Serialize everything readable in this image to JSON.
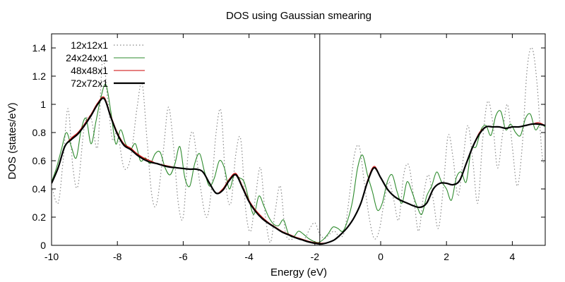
{
  "chart_data": {
    "type": "line",
    "title": "DOS using Gaussian smearing",
    "xlabel": "Energy (eV)",
    "ylabel": "DOS (states/eV)",
    "xlim": [
      -10,
      5
    ],
    "ylim": [
      0,
      1.5
    ],
    "xticks": [
      "-10",
      "-8",
      "-6",
      "-4",
      "-2",
      "0",
      "2",
      "4"
    ],
    "yticks": [
      "0",
      "0.2",
      "0.4",
      "0.6",
      "0.8",
      "1",
      "1.2",
      "1.4"
    ],
    "legend_position": "top-left",
    "vertical_line_x": -1.85,
    "series": [
      {
        "name": "12x12x1",
        "color": "#888888",
        "style": "dotted",
        "x": [
          -10.0,
          -9.8,
          -9.65,
          -9.5,
          -9.35,
          -9.2,
          -9.0,
          -8.8,
          -8.6,
          -8.45,
          -8.3,
          -8.15,
          -8.0,
          -7.8,
          -7.6,
          -7.4,
          -7.25,
          -7.1,
          -6.95,
          -6.8,
          -6.6,
          -6.45,
          -6.3,
          -6.15,
          -6.0,
          -5.85,
          -5.7,
          -5.5,
          -5.3,
          -5.15,
          -5.0,
          -4.85,
          -4.7,
          -4.55,
          -4.4,
          -4.25,
          -4.1,
          -3.95,
          -3.8,
          -3.65,
          -3.5,
          -3.35,
          -3.2,
          -3.05,
          -2.9,
          -2.75,
          -2.6,
          -2.45,
          -2.3,
          -2.15,
          -2.0,
          -1.85,
          -1.7,
          -1.55,
          -1.4,
          -1.25,
          -1.1,
          -0.95,
          -0.8,
          -0.65,
          -0.5,
          -0.35,
          -0.2,
          -0.05,
          0.1,
          0.25,
          0.4,
          0.55,
          0.7,
          0.85,
          1.0,
          1.15,
          1.3,
          1.45,
          1.6,
          1.75,
          1.9,
          2.05,
          2.2,
          2.35,
          2.5,
          2.65,
          2.8,
          2.95,
          3.1,
          3.25,
          3.4,
          3.55,
          3.7,
          3.85,
          4.0,
          4.15,
          4.3,
          4.45,
          4.6,
          4.75,
          4.9,
          5.0
        ],
        "y": [
          0.42,
          0.3,
          0.6,
          0.97,
          0.55,
          0.42,
          0.85,
          0.9,
          0.7,
          1.32,
          1.05,
          0.75,
          0.8,
          0.55,
          0.62,
          0.98,
          1.15,
          0.75,
          0.35,
          0.3,
          0.68,
          0.98,
          0.72,
          0.3,
          0.2,
          0.65,
          0.8,
          0.45,
          0.2,
          0.38,
          0.8,
          0.95,
          0.42,
          0.3,
          0.65,
          0.75,
          0.25,
          0.1,
          0.35,
          0.55,
          0.2,
          0.02,
          0.25,
          0.42,
          0.1,
          0.04,
          0.06,
          0.04,
          0.05,
          0.12,
          0.16,
          0.08,
          0.05,
          0.08,
          0.1,
          0.06,
          0.1,
          0.35,
          0.64,
          0.7,
          0.45,
          0.2,
          0.05,
          0.1,
          0.3,
          0.45,
          0.32,
          0.18,
          0.5,
          0.57,
          0.35,
          0.1,
          0.35,
          0.5,
          0.32,
          0.12,
          0.4,
          0.78,
          0.62,
          0.35,
          0.6,
          0.85,
          0.6,
          0.3,
          0.75,
          1.02,
          0.88,
          0.55,
          0.78,
          1.0,
          0.7,
          0.42,
          0.7,
          1.25,
          1.4,
          1.15,
          0.65,
          0.58
        ]
      },
      {
        "name": "24x24xx1",
        "color": "#2e8b2e",
        "style": "solid",
        "x": [
          -10.0,
          -9.85,
          -9.7,
          -9.55,
          -9.4,
          -9.25,
          -9.1,
          -8.95,
          -8.8,
          -8.65,
          -8.5,
          -8.35,
          -8.2,
          -8.05,
          -7.9,
          -7.75,
          -7.6,
          -7.45,
          -7.3,
          -7.15,
          -7.0,
          -6.85,
          -6.7,
          -6.55,
          -6.4,
          -6.25,
          -6.1,
          -5.95,
          -5.8,
          -5.65,
          -5.5,
          -5.35,
          -5.2,
          -5.05,
          -4.9,
          -4.75,
          -4.6,
          -4.45,
          -4.3,
          -4.15,
          -4.0,
          -3.85,
          -3.7,
          -3.55,
          -3.4,
          -3.25,
          -3.1,
          -2.95,
          -2.8,
          -2.65,
          -2.5,
          -2.35,
          -2.2,
          -2.05,
          -1.9,
          -1.75,
          -1.6,
          -1.45,
          -1.3,
          -1.15,
          -1.0,
          -0.85,
          -0.7,
          -0.55,
          -0.4,
          -0.25,
          -0.1,
          0.05,
          0.2,
          0.35,
          0.5,
          0.65,
          0.8,
          0.95,
          1.1,
          1.25,
          1.4,
          1.55,
          1.7,
          1.85,
          2.0,
          2.15,
          2.3,
          2.45,
          2.6,
          2.75,
          2.9,
          3.05,
          3.2,
          3.35,
          3.5,
          3.65,
          3.8,
          3.95,
          4.1,
          4.25,
          4.4,
          4.55,
          4.7,
          4.85,
          5.0
        ],
        "y": [
          0.45,
          0.55,
          0.68,
          0.8,
          0.7,
          0.62,
          0.82,
          0.9,
          0.72,
          0.88,
          1.05,
          1.14,
          0.95,
          0.72,
          0.82,
          0.72,
          0.68,
          0.72,
          0.6,
          0.62,
          0.58,
          0.65,
          0.66,
          0.55,
          0.5,
          0.58,
          0.7,
          0.48,
          0.42,
          0.58,
          0.65,
          0.52,
          0.42,
          0.48,
          0.6,
          0.55,
          0.4,
          0.5,
          0.48,
          0.45,
          0.32,
          0.22,
          0.35,
          0.28,
          0.2,
          0.15,
          0.14,
          0.18,
          0.08,
          0.06,
          0.1,
          0.08,
          0.05,
          0.03,
          0.02,
          0.04,
          0.08,
          0.13,
          0.12,
          0.1,
          0.18,
          0.32,
          0.55,
          0.64,
          0.5,
          0.38,
          0.25,
          0.3,
          0.45,
          0.5,
          0.38,
          0.3,
          0.45,
          0.38,
          0.28,
          0.22,
          0.35,
          0.42,
          0.52,
          0.45,
          0.4,
          0.32,
          0.48,
          0.52,
          0.45,
          0.68,
          0.7,
          0.82,
          0.85,
          0.78,
          0.92,
          0.95,
          0.82,
          0.86,
          0.8,
          0.78,
          0.9,
          0.93,
          0.82,
          0.86,
          0.84
        ]
      },
      {
        "name": "48x48x1",
        "color": "#cc0000",
        "style": "solid",
        "x": [
          -10.0,
          -9.8,
          -9.6,
          -9.4,
          -9.2,
          -9.0,
          -8.8,
          -8.6,
          -8.4,
          -8.2,
          -8.0,
          -7.8,
          -7.6,
          -7.4,
          -7.2,
          -7.0,
          -6.8,
          -6.6,
          -6.4,
          -6.2,
          -6.0,
          -5.8,
          -5.6,
          -5.4,
          -5.2,
          -5.0,
          -4.8,
          -4.6,
          -4.4,
          -4.2,
          -4.0,
          -3.8,
          -3.6,
          -3.4,
          -3.2,
          -3.0,
          -2.8,
          -2.6,
          -2.4,
          -2.2,
          -2.0,
          -1.8,
          -1.6,
          -1.4,
          -1.2,
          -1.0,
          -0.8,
          -0.6,
          -0.4,
          -0.2,
          0.0,
          0.2,
          0.4,
          0.6,
          0.8,
          1.0,
          1.2,
          1.4,
          1.6,
          1.8,
          2.0,
          2.2,
          2.4,
          2.6,
          2.8,
          3.0,
          3.2,
          3.4,
          3.6,
          3.8,
          4.0,
          4.2,
          4.4,
          4.6,
          4.8,
          5.0
        ],
        "y": [
          0.44,
          0.55,
          0.7,
          0.76,
          0.8,
          0.86,
          0.93,
          1.01,
          1.05,
          0.92,
          0.8,
          0.72,
          0.69,
          0.65,
          0.62,
          0.6,
          0.58,
          0.57,
          0.56,
          0.55,
          0.545,
          0.54,
          0.54,
          0.52,
          0.44,
          0.37,
          0.4,
          0.47,
          0.51,
          0.42,
          0.32,
          0.25,
          0.2,
          0.16,
          0.13,
          0.1,
          0.08,
          0.06,
          0.045,
          0.03,
          0.02,
          0.015,
          0.02,
          0.04,
          0.08,
          0.13,
          0.2,
          0.3,
          0.46,
          0.56,
          0.48,
          0.4,
          0.35,
          0.32,
          0.3,
          0.28,
          0.27,
          0.3,
          0.4,
          0.44,
          0.44,
          0.43,
          0.46,
          0.58,
          0.7,
          0.8,
          0.84,
          0.84,
          0.84,
          0.83,
          0.84,
          0.84,
          0.85,
          0.86,
          0.87,
          0.85
        ]
      },
      {
        "name": "72x72x1",
        "color": "#000000",
        "style": "solid-thick",
        "x": [
          -10.0,
          -9.8,
          -9.6,
          -9.4,
          -9.2,
          -9.0,
          -8.8,
          -8.6,
          -8.4,
          -8.2,
          -8.0,
          -7.8,
          -7.6,
          -7.4,
          -7.2,
          -7.0,
          -6.8,
          -6.6,
          -6.4,
          -6.2,
          -6.0,
          -5.8,
          -5.6,
          -5.4,
          -5.2,
          -5.0,
          -4.8,
          -4.6,
          -4.4,
          -4.2,
          -4.0,
          -3.8,
          -3.6,
          -3.4,
          -3.2,
          -3.0,
          -2.8,
          -2.6,
          -2.4,
          -2.2,
          -2.0,
          -1.8,
          -1.6,
          -1.4,
          -1.2,
          -1.0,
          -0.8,
          -0.6,
          -0.4,
          -0.2,
          0.0,
          0.2,
          0.4,
          0.6,
          0.8,
          1.0,
          1.2,
          1.4,
          1.6,
          1.8,
          2.0,
          2.2,
          2.4,
          2.6,
          2.8,
          3.0,
          3.2,
          3.4,
          3.6,
          3.8,
          4.0,
          4.2,
          4.4,
          4.6,
          4.8,
          5.0
        ],
        "y": [
          0.44,
          0.55,
          0.7,
          0.75,
          0.79,
          0.85,
          0.92,
          1.0,
          1.04,
          0.91,
          0.79,
          0.71,
          0.68,
          0.64,
          0.61,
          0.59,
          0.58,
          0.565,
          0.555,
          0.55,
          0.545,
          0.54,
          0.54,
          0.52,
          0.44,
          0.37,
          0.39,
          0.46,
          0.5,
          0.41,
          0.31,
          0.24,
          0.19,
          0.155,
          0.125,
          0.095,
          0.075,
          0.055,
          0.04,
          0.025,
          0.015,
          0.01,
          0.02,
          0.04,
          0.08,
          0.13,
          0.2,
          0.3,
          0.45,
          0.55,
          0.48,
          0.4,
          0.35,
          0.32,
          0.3,
          0.28,
          0.27,
          0.3,
          0.4,
          0.44,
          0.44,
          0.43,
          0.46,
          0.58,
          0.7,
          0.79,
          0.84,
          0.84,
          0.84,
          0.83,
          0.84,
          0.84,
          0.85,
          0.86,
          0.86,
          0.85
        ]
      }
    ]
  }
}
